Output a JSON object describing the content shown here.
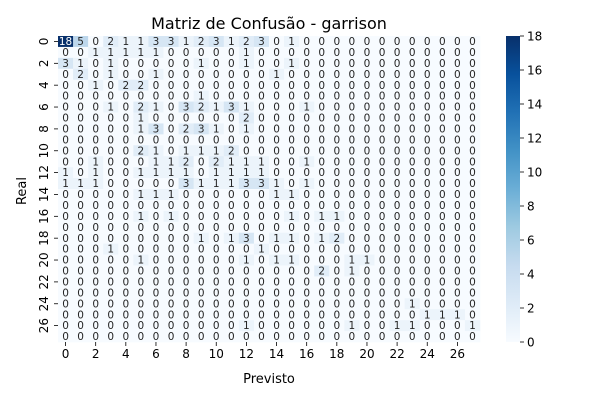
{
  "chart_data": {
    "type": "heatmap",
    "title": "Matriz de Confusão - garrison",
    "xlabel": "Previsto",
    "ylabel": "Real",
    "x_tick_labels": [
      "0",
      "2",
      "4",
      "6",
      "8",
      "10",
      "12",
      "14",
      "16",
      "18",
      "20",
      "22",
      "24",
      "26"
    ],
    "y_tick_labels": [
      "0",
      "2",
      "4",
      "6",
      "8",
      "10",
      "12",
      "14",
      "16",
      "18",
      "20",
      "22",
      "24",
      "26"
    ],
    "colorbar": {
      "min": 0,
      "max": 18,
      "ticks": [
        0,
        2,
        4,
        6,
        8,
        10,
        12,
        14,
        16,
        18
      ]
    },
    "colormap": [
      "#f7fbff",
      "#deebf7",
      "#c6dbef",
      "#9ecae1",
      "#6baed6",
      "#4292c6",
      "#2171b5",
      "#08519c",
      "#08306b"
    ],
    "matrix": [
      [
        18,
        5,
        0,
        2,
        1,
        1,
        3,
        3,
        1,
        2,
        3,
        1,
        2,
        3,
        0,
        1,
        0,
        0,
        0,
        0,
        0,
        0,
        0,
        0,
        0,
        0,
        0,
        0
      ],
      [
        0,
        0,
        1,
        1,
        1,
        1,
        1,
        0,
        0,
        0,
        0,
        0,
        1,
        0,
        0,
        0,
        0,
        0,
        0,
        0,
        0,
        0,
        0,
        0,
        0,
        0,
        0,
        0
      ],
      [
        3,
        1,
        0,
        1,
        0,
        0,
        0,
        0,
        0,
        1,
        0,
        0,
        1,
        0,
        0,
        1,
        0,
        0,
        0,
        0,
        0,
        0,
        0,
        0,
        0,
        0,
        0,
        0
      ],
      [
        0,
        2,
        0,
        1,
        0,
        0,
        1,
        0,
        0,
        0,
        0,
        0,
        0,
        0,
        1,
        0,
        0,
        0,
        0,
        0,
        0,
        0,
        0,
        0,
        0,
        0,
        0,
        0
      ],
      [
        0,
        0,
        1,
        0,
        2,
        2,
        0,
        0,
        0,
        0,
        0,
        0,
        0,
        0,
        0,
        0,
        0,
        0,
        0,
        0,
        0,
        0,
        0,
        0,
        0,
        0,
        0,
        0
      ],
      [
        0,
        0,
        0,
        0,
        0,
        0,
        0,
        0,
        0,
        1,
        0,
        0,
        0,
        0,
        0,
        0,
        0,
        0,
        0,
        0,
        0,
        0,
        0,
        0,
        0,
        0,
        0,
        0
      ],
      [
        0,
        0,
        0,
        1,
        0,
        2,
        1,
        0,
        3,
        2,
        1,
        3,
        1,
        0,
        0,
        0,
        1,
        0,
        0,
        0,
        0,
        0,
        0,
        0,
        0,
        0,
        0,
        0
      ],
      [
        0,
        0,
        0,
        0,
        0,
        1,
        0,
        0,
        0,
        0,
        0,
        0,
        2,
        0,
        0,
        0,
        0,
        0,
        0,
        0,
        0,
        0,
        0,
        0,
        0,
        0,
        0,
        0
      ],
      [
        0,
        0,
        0,
        0,
        0,
        1,
        3,
        0,
        2,
        3,
        1,
        0,
        1,
        0,
        0,
        0,
        0,
        0,
        0,
        0,
        0,
        0,
        0,
        0,
        0,
        0,
        0,
        0
      ],
      [
        0,
        0,
        0,
        0,
        0,
        0,
        0,
        0,
        0,
        0,
        0,
        0,
        0,
        0,
        0,
        0,
        0,
        0,
        0,
        0,
        0,
        0,
        0,
        0,
        0,
        0,
        0,
        0
      ],
      [
        0,
        0,
        0,
        0,
        0,
        2,
        1,
        0,
        1,
        1,
        1,
        2,
        0,
        0,
        0,
        0,
        0,
        0,
        0,
        0,
        0,
        0,
        0,
        0,
        0,
        0,
        0,
        0
      ],
      [
        0,
        0,
        1,
        0,
        0,
        0,
        1,
        1,
        2,
        0,
        2,
        1,
        1,
        1,
        0,
        0,
        1,
        0,
        0,
        0,
        0,
        0,
        0,
        0,
        0,
        0,
        0,
        0
      ],
      [
        1,
        0,
        1,
        0,
        0,
        1,
        1,
        1,
        1,
        0,
        1,
        1,
        1,
        1,
        0,
        0,
        0,
        0,
        0,
        0,
        0,
        0,
        0,
        0,
        0,
        0,
        0,
        0
      ],
      [
        1,
        1,
        1,
        0,
        0,
        0,
        0,
        0,
        3,
        1,
        1,
        1,
        3,
        3,
        1,
        0,
        1,
        0,
        0,
        0,
        0,
        0,
        0,
        0,
        0,
        0,
        0,
        0
      ],
      [
        0,
        0,
        0,
        0,
        0,
        1,
        1,
        1,
        0,
        0,
        0,
        0,
        0,
        0,
        1,
        1,
        0,
        0,
        0,
        0,
        0,
        0,
        0,
        0,
        0,
        0,
        0,
        0
      ],
      [
        0,
        0,
        0,
        0,
        0,
        0,
        0,
        0,
        0,
        0,
        0,
        0,
        0,
        0,
        0,
        0,
        0,
        0,
        0,
        0,
        0,
        0,
        0,
        0,
        0,
        0,
        0,
        0
      ],
      [
        0,
        0,
        0,
        0,
        0,
        1,
        0,
        1,
        0,
        0,
        0,
        0,
        0,
        0,
        0,
        1,
        0,
        1,
        1,
        0,
        0,
        0,
        0,
        0,
        0,
        0,
        0,
        0
      ],
      [
        0,
        0,
        0,
        0,
        0,
        0,
        0,
        0,
        0,
        0,
        0,
        0,
        0,
        0,
        0,
        0,
        0,
        0,
        0,
        0,
        0,
        0,
        0,
        0,
        0,
        0,
        0,
        0
      ],
      [
        0,
        0,
        0,
        0,
        0,
        0,
        0,
        0,
        0,
        1,
        0,
        1,
        3,
        0,
        1,
        1,
        0,
        1,
        2,
        0,
        0,
        0,
        0,
        0,
        0,
        0,
        0,
        0
      ],
      [
        0,
        0,
        0,
        1,
        0,
        0,
        0,
        0,
        0,
        0,
        0,
        0,
        0,
        1,
        0,
        0,
        0,
        0,
        0,
        0,
        0,
        0,
        0,
        0,
        0,
        0,
        0,
        0
      ],
      [
        0,
        0,
        0,
        0,
        0,
        1,
        0,
        0,
        0,
        0,
        0,
        0,
        1,
        0,
        1,
        1,
        0,
        0,
        0,
        1,
        1,
        0,
        0,
        0,
        0,
        0,
        0,
        0
      ],
      [
        0,
        0,
        0,
        0,
        0,
        0,
        0,
        0,
        0,
        0,
        0,
        0,
        0,
        0,
        0,
        0,
        0,
        2,
        0,
        1,
        0,
        0,
        0,
        0,
        0,
        0,
        0,
        0
      ],
      [
        0,
        0,
        0,
        0,
        0,
        0,
        0,
        0,
        0,
        0,
        0,
        0,
        0,
        0,
        0,
        0,
        0,
        0,
        0,
        0,
        0,
        0,
        0,
        0,
        0,
        0,
        0,
        0
      ],
      [
        0,
        0,
        0,
        0,
        0,
        0,
        0,
        0,
        0,
        0,
        0,
        0,
        0,
        0,
        0,
        0,
        0,
        0,
        0,
        0,
        0,
        0,
        0,
        0,
        0,
        0,
        0,
        0
      ],
      [
        0,
        0,
        0,
        0,
        0,
        0,
        0,
        0,
        0,
        0,
        0,
        0,
        0,
        0,
        0,
        0,
        0,
        0,
        0,
        0,
        0,
        0,
        0,
        1,
        0,
        0,
        0,
        0
      ],
      [
        0,
        0,
        0,
        0,
        0,
        0,
        0,
        0,
        0,
        0,
        0,
        0,
        0,
        0,
        0,
        0,
        0,
        0,
        0,
        0,
        0,
        0,
        0,
        0,
        1,
        1,
        1,
        0
      ],
      [
        0,
        0,
        0,
        0,
        0,
        0,
        0,
        0,
        0,
        0,
        0,
        0,
        1,
        0,
        0,
        0,
        0,
        0,
        0,
        1,
        0,
        0,
        1,
        1,
        0,
        0,
        0,
        1
      ],
      [
        0,
        0,
        0,
        0,
        0,
        0,
        0,
        0,
        0,
        0,
        0,
        0,
        0,
        0,
        0,
        0,
        0,
        0,
        0,
        0,
        0,
        0,
        0,
        0,
        0,
        0,
        0,
        0
      ]
    ]
  }
}
